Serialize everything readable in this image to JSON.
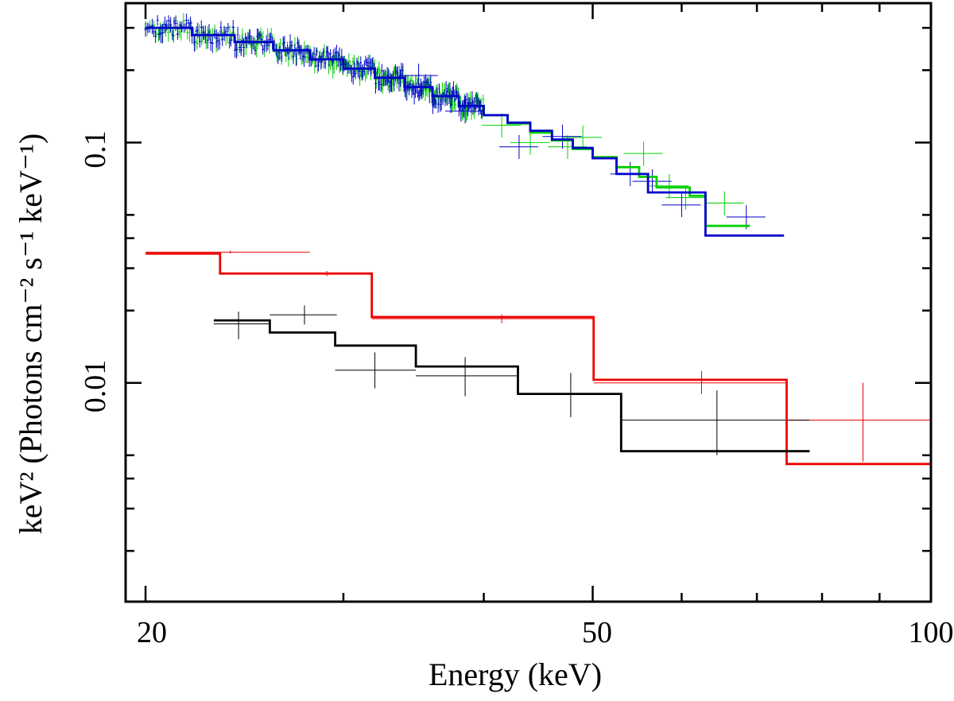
{
  "chart_data": {
    "type": "line",
    "title": "",
    "xlabel": "Energy (keV)",
    "ylabel": "keV² (Photons cm⁻² s⁻¹ keV⁻¹)",
    "xscale": "log",
    "yscale": "log",
    "xlim": [
      19.2,
      100
    ],
    "ylim": [
      0.00123,
      0.38
    ],
    "x_tick_labels": [
      "20",
      "50",
      "100"
    ],
    "y_tick_labels": [
      "0.01",
      "0.1"
    ],
    "colors": {
      "green": "#00d000",
      "blue": "#0000cc",
      "red": "#ee0000",
      "black": "#000000"
    },
    "series": [
      {
        "name": "green data",
        "color_key": "green",
        "model_steps": [
          [
            20,
            0.3
          ],
          [
            22,
            0.28
          ],
          [
            24,
            0.262
          ],
          [
            26,
            0.242
          ],
          [
            28,
            0.222
          ],
          [
            30,
            0.203
          ],
          [
            32,
            0.186
          ],
          [
            34,
            0.17
          ],
          [
            36,
            0.156
          ],
          [
            38,
            0.142
          ],
          [
            40,
            0.13
          ],
          [
            42,
            0.12
          ],
          [
            44,
            0.11
          ],
          [
            46,
            0.102
          ],
          [
            48,
            0.094
          ],
          [
            50,
            0.087
          ],
          [
            52.5,
            0.079
          ],
          [
            55,
            0.072
          ],
          [
            57,
            0.065
          ],
          [
            61,
            0.06
          ],
          [
            63,
            0.045
          ],
          [
            69,
            0.045
          ]
        ],
        "points": [
          [
            41.5,
            0.118
          ],
          [
            44.0,
            0.1
          ],
          [
            47.5,
            0.096
          ],
          [
            49.0,
            0.105
          ],
          [
            55.5,
            0.09
          ],
          [
            58.5,
            0.066
          ],
          [
            65.5,
            0.056
          ],
          [
            60.5,
            0.059
          ]
        ]
      },
      {
        "name": "blue data",
        "color_key": "blue",
        "model_steps": [
          [
            20,
            0.3
          ],
          [
            22,
            0.28
          ],
          [
            24,
            0.262
          ],
          [
            26,
            0.242
          ],
          [
            28,
            0.222
          ],
          [
            30,
            0.203
          ],
          [
            32,
            0.186
          ],
          [
            34,
            0.17
          ],
          [
            36,
            0.156
          ],
          [
            38,
            0.142
          ],
          [
            40,
            0.13
          ],
          [
            42,
            0.121
          ],
          [
            44,
            0.112
          ],
          [
            46,
            0.103
          ],
          [
            48,
            0.095
          ],
          [
            50,
            0.086
          ],
          [
            52.5,
            0.074
          ],
          [
            56,
            0.062
          ],
          [
            63,
            0.041
          ],
          [
            74,
            0.041
          ]
        ],
        "points": [
          [
            43.0,
            0.096
          ],
          [
            47.0,
            0.106
          ],
          [
            54.0,
            0.074
          ],
          [
            56.5,
            0.069
          ],
          [
            60.0,
            0.055
          ],
          [
            68.5,
            0.049
          ],
          [
            38.5,
            0.135
          ],
          [
            35.0,
            0.19
          ]
        ]
      },
      {
        "name": "red data",
        "color_key": "red",
        "model_steps": [
          [
            20,
            0.0345
          ],
          [
            23.3,
            0.0285
          ],
          [
            31.8,
            0.0188
          ],
          [
            50.1,
            0.0103
          ],
          [
            74.4,
            0.0046
          ],
          [
            100,
            0.0046
          ]
        ],
        "points": [
          [
            23.8,
            0.035,
            20.0,
            28.0,
            0.0345,
            0.0355
          ],
          [
            29.0,
            0.0285,
            23.3,
            31.8,
            0.0278,
            0.0292
          ],
          [
            41.5,
            0.0185,
            31.8,
            50.1,
            0.0177,
            0.0193
          ],
          [
            62.5,
            0.01,
            50.1,
            74.4,
            0.009,
            0.0112
          ],
          [
            87.0,
            0.007,
            74.4,
            100.0,
            0.0047,
            0.01
          ]
        ]
      },
      {
        "name": "black data",
        "color_key": "black",
        "model_steps": [
          [
            23.0,
            0.0182
          ],
          [
            25.8,
            0.0162
          ],
          [
            29.5,
            0.0143
          ],
          [
            34.8,
            0.0117
          ],
          [
            42.9,
            0.009
          ],
          [
            53.0,
            0.0052
          ],
          [
            78.0,
            0.0052
          ]
        ],
        "points": [
          [
            24.2,
            0.0176,
            23.0,
            25.8,
            0.0152,
            0.0198
          ],
          [
            27.7,
            0.0192,
            25.8,
            29.6,
            0.0175,
            0.021
          ],
          [
            32.0,
            0.0113,
            29.5,
            34.8,
            0.0095,
            0.0134
          ],
          [
            38.5,
            0.0107,
            34.8,
            42.9,
            0.0088,
            0.0128
          ],
          [
            47.8,
            0.009,
            42.9,
            53.0,
            0.0072,
            0.011
          ],
          [
            64.5,
            0.007,
            53.0,
            78.0,
            0.005,
            0.0093
          ]
        ]
      }
    ]
  }
}
